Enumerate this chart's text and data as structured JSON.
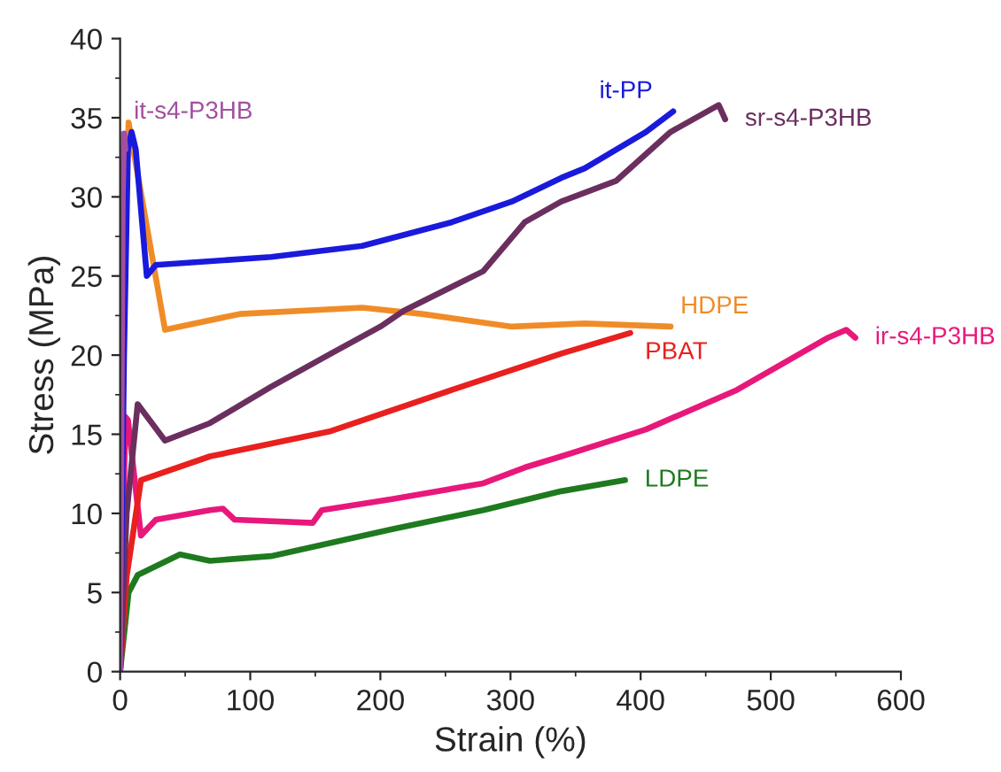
{
  "chart_data": {
    "type": "line",
    "xlabel": "Strain (%)",
    "ylabel": "Stress (MPa)",
    "xlim": [
      0,
      600
    ],
    "xticks": [
      0,
      100,
      200,
      300,
      400,
      500,
      600
    ],
    "ylim": [
      0,
      40
    ],
    "yticks": [
      0,
      5,
      10,
      15,
      20,
      25,
      30,
      35,
      40
    ],
    "grid": false,
    "legend": false,
    "marker": "none",
    "line_style": "solid",
    "series": [
      {
        "name": "LDPE",
        "color": "#1e7a1e",
        "x": [
          0,
          6.5,
          13.5,
          46,
          69,
          116,
          209,
          279,
          339,
          388
        ],
        "values": [
          0,
          5.0,
          6.1,
          7.4,
          7.0,
          7.3,
          9.0,
          10.2,
          11.4,
          12.1
        ]
      },
      {
        "name": "ir-s4-P3HB",
        "color": "#e8187a",
        "x": [
          0,
          4,
          6,
          16,
          27.5,
          69,
          79,
          88,
          148,
          155,
          209,
          279,
          311,
          339,
          404,
          474,
          544,
          558,
          565
        ],
        "values": [
          0,
          16.1,
          15.9,
          8.6,
          9.6,
          10.2,
          10.3,
          9.6,
          9.4,
          10.2,
          10.9,
          11.9,
          12.9,
          13.6,
          15.3,
          17.8,
          21.1,
          21.6,
          21.1
        ]
      },
      {
        "name": "PBAT",
        "color": "#e8201e",
        "x": [
          0,
          5,
          16,
          69,
          162,
          255,
          339,
          392
        ],
        "values": [
          0,
          6,
          12.1,
          13.6,
          15.2,
          17.8,
          20.1,
          21.4
        ]
      },
      {
        "name": "HDPE",
        "color": "#f08c28",
        "x": [
          0,
          3,
          6.5,
          34.5,
          92,
          186,
          232,
          301,
          357,
          423
        ],
        "values": [
          0,
          25,
          34.7,
          21.6,
          22.6,
          23.0,
          22.6,
          21.8,
          22.0,
          21.8
        ]
      },
      {
        "name": "sr-s4-P3HB",
        "color": "#6b2f5f",
        "x": [
          0,
          5,
          13.5,
          34.5,
          69,
          116,
          162,
          200,
          218,
          279,
          311,
          339,
          381,
          423,
          460,
          465
        ],
        "values": [
          0,
          10,
          16.9,
          14.6,
          15.7,
          18.0,
          20.1,
          21.8,
          22.8,
          25.3,
          28.4,
          29.7,
          31.0,
          34.1,
          35.8,
          34.9
        ]
      },
      {
        "name": "it-PP",
        "color": "#1a1adc",
        "x": [
          0,
          3,
          6,
          8.8,
          12,
          20.5,
          27.5,
          116,
          186,
          255,
          301,
          339,
          357,
          404,
          425
        ],
        "values": [
          0,
          20,
          33,
          34.1,
          33,
          25.0,
          25.7,
          26.2,
          26.9,
          28.4,
          29.7,
          31.2,
          31.8,
          34.1,
          35.4
        ]
      },
      {
        "name": "it-s4-P3HB",
        "color": "#a24fa0",
        "x": [
          0,
          1,
          2,
          3,
          4
        ],
        "values": [
          0,
          15,
          30,
          34,
          33
        ]
      }
    ]
  }
}
